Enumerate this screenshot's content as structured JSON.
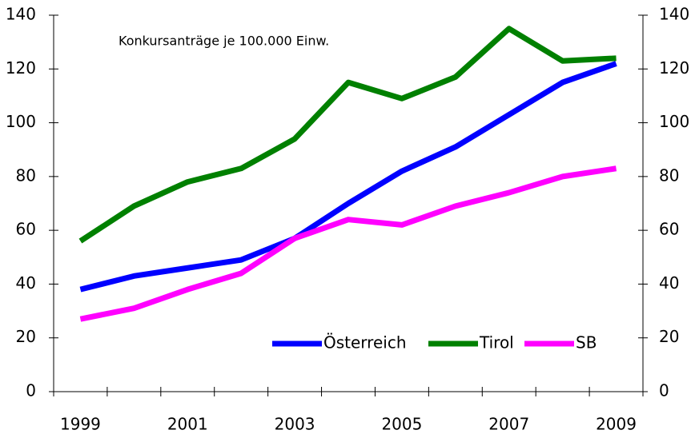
{
  "chart_data": {
    "type": "line",
    "annotation": "Konkursanträge je 100.000 Einw.",
    "categories": [
      "1999",
      null,
      "2001",
      null,
      "2003",
      null,
      "2005",
      null,
      "2007",
      null,
      "2009"
    ],
    "series": [
      {
        "name": "Österreich",
        "color": "#0000ff",
        "values": [
          38,
          43,
          46,
          49,
          57,
          70,
          82,
          91,
          103,
          115,
          122
        ]
      },
      {
        "name": "Tirol",
        "color": "#008000",
        "values": [
          56,
          69,
          78,
          83,
          94,
          115,
          109,
          117,
          135,
          123,
          124
        ]
      },
      {
        "name": "SB",
        "color": "#ff00ff",
        "values": [
          27,
          31,
          38,
          44,
          57,
          64,
          62,
          69,
          74,
          80,
          83
        ]
      }
    ],
    "ylim": [
      0,
      140
    ],
    "yticks": [
      0,
      20,
      40,
      60,
      80,
      100,
      120,
      140
    ],
    "y2lim": [
      0,
      140
    ],
    "y2ticks": [
      0,
      20,
      40,
      60,
      80,
      100,
      120,
      140
    ],
    "grid": false,
    "legend": "lower right"
  }
}
